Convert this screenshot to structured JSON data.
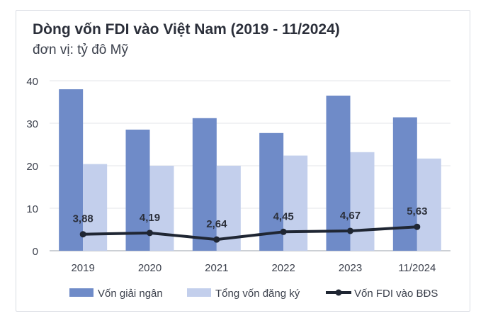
{
  "chart_data": {
    "type": "bar",
    "title": "Dòng vốn FDI vào Việt Nam (2019 - 11/2024)",
    "subtitle": "đơn vị: tỷ đô Mỹ",
    "categories": [
      "2019",
      "2020",
      "2021",
      "2022",
      "2023",
      "11/2024"
    ],
    "ylim": [
      0,
      40
    ],
    "yticks": [
      "0",
      "10",
      "20",
      "30",
      "40"
    ],
    "grid": true,
    "legend_position": "bottom",
    "series": [
      {
        "name": "Vốn giải ngân",
        "kind": "bar",
        "color": "#6f8bc8",
        "values": [
          38.0,
          28.5,
          31.2,
          27.7,
          36.5,
          31.4
        ]
      },
      {
        "name": "Tổng vốn đăng ký",
        "kind": "bar",
        "color": "#c3cfec",
        "values": [
          20.4,
          20.0,
          20.0,
          22.4,
          23.2,
          21.7
        ]
      },
      {
        "name": "Vốn FDI vào BĐS",
        "kind": "line",
        "color": "#1f2633",
        "values": [
          3.88,
          4.19,
          2.64,
          4.45,
          4.67,
          5.63
        ],
        "labels": [
          "3,88",
          "4,19",
          "2,64",
          "4,45",
          "4,67",
          "5,63"
        ]
      }
    ]
  }
}
